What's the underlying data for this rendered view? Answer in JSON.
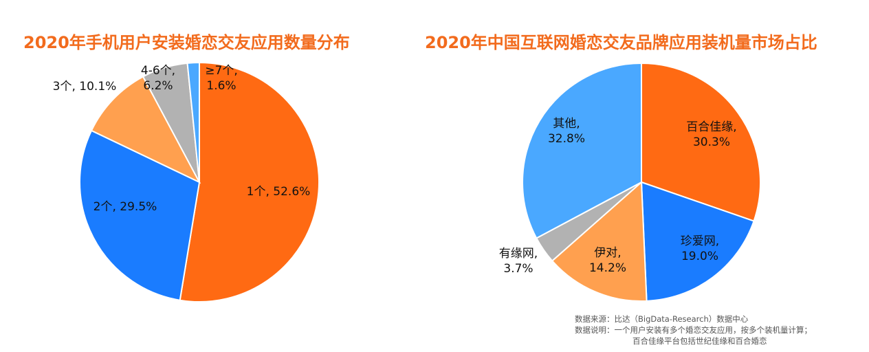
{
  "chart_data": [
    {
      "type": "pie",
      "title": "2020年手机用户安装婚恋交友应用数量分布",
      "slices": [
        {
          "label": "1个",
          "value": 52.6,
          "value_text": "52.6%",
          "color": "#ff6a13"
        },
        {
          "label": "2个",
          "value": 29.5,
          "value_text": "29.5%",
          "color": "#1a7cff"
        },
        {
          "label": "3个",
          "value": 10.1,
          "value_text": "10.1%",
          "color": "#ffa04f"
        },
        {
          "label": "4-6个",
          "value": 6.2,
          "value_text": "6.2%",
          "color": "#b2b2b2"
        },
        {
          "label": "≥7个",
          "value": 1.6,
          "value_text": "1.6%",
          "color": "#4aa8ff"
        }
      ]
    },
    {
      "type": "pie",
      "title": "2020年中国互联网婚恋交友品牌应用装机量市场占比",
      "slices": [
        {
          "label": "百合佳缘",
          "value": 30.3,
          "value_text": "30.3%",
          "color": "#ff6a13"
        },
        {
          "label": "珍爱网",
          "value": 19.0,
          "value_text": "19.0%",
          "color": "#1a7cff"
        },
        {
          "label": "伊对",
          "value": 14.2,
          "value_text": "14.2%",
          "color": "#ffa04f"
        },
        {
          "label": "有缘网",
          "value": 3.7,
          "value_text": "3.7%",
          "color": "#b2b2b2"
        },
        {
          "label": "其他",
          "value": 32.8,
          "value_text": "32.8%",
          "color": "#4aa8ff"
        }
      ]
    }
  ],
  "footnote": {
    "source": "数据来源：比达（BigData-Research）数据中心",
    "note_line1": "数据说明：一个用户安装有多个婚恋交友应用，按多个装机量计算；",
    "note_line2": "百合佳缘平台包括世纪佳缘和百合婚恋"
  }
}
